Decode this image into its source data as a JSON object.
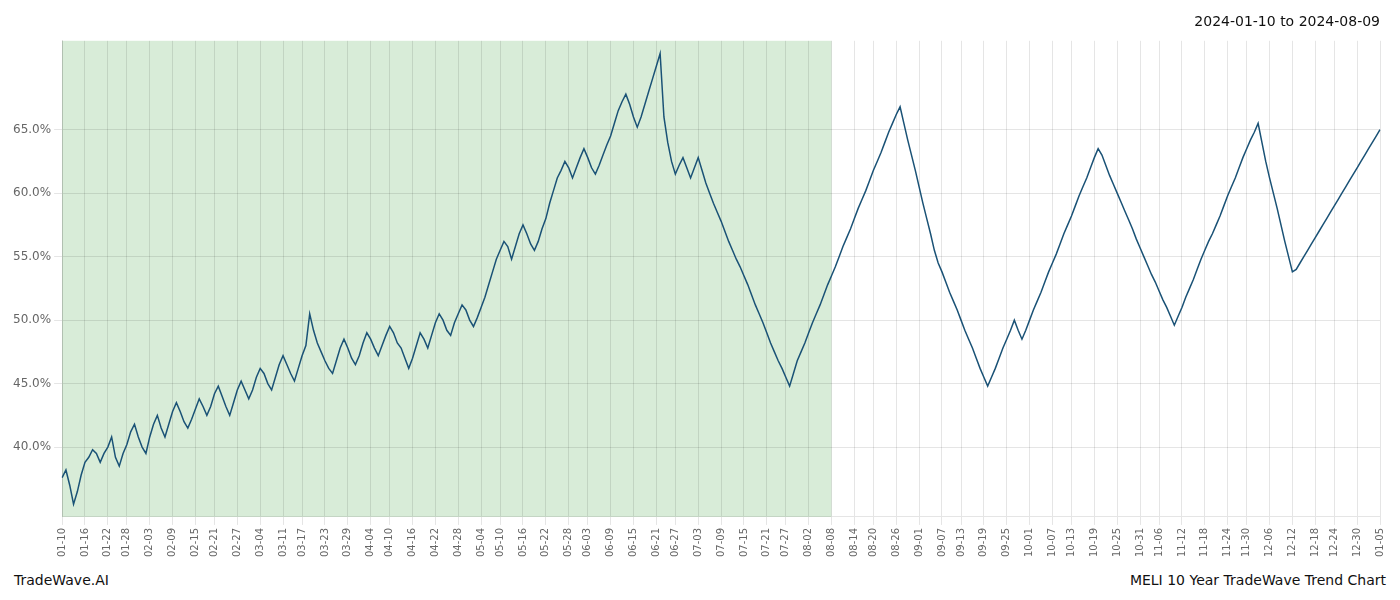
{
  "chart_data": {
    "type": "line",
    "title": "2024-01-10 to 2024-08-09",
    "annotations": [
      "TradeWave.AI",
      "MELI 10 Year TradeWave Trend Chart"
    ],
    "color": "#1a5276",
    "grid": true,
    "highlight": {
      "start": "01-10",
      "end": "08-08",
      "color": "#d8ecd8"
    },
    "ylim": [
      0.345,
      0.72
    ],
    "yticks": [
      {
        "value": 0.4,
        "label": "40.0%"
      },
      {
        "value": 0.45,
        "label": "45.0%"
      },
      {
        "value": 0.5,
        "label": "50.0%"
      },
      {
        "value": 0.55,
        "label": "55.0%"
      },
      {
        "value": 0.6,
        "label": "60.0%"
      },
      {
        "value": 0.65,
        "label": "65.0%"
      }
    ],
    "categories": [
      "01-10",
      null,
      null,
      null,
      null,
      null,
      "01-16",
      null,
      null,
      null,
      null,
      null,
      "01-22",
      null,
      null,
      null,
      null,
      "01-28",
      null,
      null,
      null,
      null,
      null,
      "02-03",
      null,
      null,
      null,
      null,
      null,
      "02-09",
      null,
      null,
      null,
      null,
      null,
      "02-15",
      null,
      null,
      null,
      null,
      "02-21",
      null,
      null,
      null,
      null,
      null,
      "02-27",
      null,
      null,
      null,
      null,
      null,
      "03-04",
      null,
      null,
      null,
      null,
      null,
      "03-11",
      null,
      null,
      null,
      null,
      "03-17",
      null,
      null,
      null,
      null,
      null,
      "03-23",
      null,
      null,
      null,
      null,
      null,
      "03-29",
      null,
      null,
      null,
      null,
      null,
      "04-04",
      null,
      null,
      null,
      null,
      "04-10",
      null,
      null,
      null,
      null,
      null,
      "04-16",
      null,
      null,
      null,
      null,
      null,
      "04-22",
      null,
      null,
      null,
      null,
      null,
      "04-28",
      null,
      null,
      null,
      null,
      null,
      "05-04",
      null,
      null,
      null,
      null,
      "05-10",
      null,
      null,
      null,
      null,
      null,
      "05-16",
      null,
      null,
      null,
      null,
      null,
      "05-22",
      null,
      null,
      null,
      null,
      null,
      "05-28",
      null,
      null,
      null,
      null,
      "06-03",
      null,
      null,
      null,
      null,
      null,
      "06-09",
      null,
      null,
      null,
      null,
      null,
      "06-15",
      null,
      null,
      null,
      null,
      null,
      "06-21",
      null,
      null,
      null,
      null,
      "06-27",
      null,
      null,
      null,
      null,
      null,
      "07-03",
      null,
      null,
      null,
      null,
      null,
      "07-09",
      null,
      null,
      null,
      null,
      null,
      "07-15",
      null,
      null,
      null,
      null,
      null,
      "07-21",
      null,
      null,
      null,
      null,
      "07-27",
      null,
      null,
      null,
      null,
      null,
      "08-02",
      null,
      null,
      null,
      null,
      null,
      "08-08",
      null,
      null,
      null,
      null,
      null,
      "08-14",
      null,
      null,
      null,
      null,
      "08-20",
      null,
      null,
      null,
      null,
      null,
      "08-26",
      null,
      null,
      null,
      null,
      null,
      "09-01",
      null,
      null,
      null,
      null,
      null,
      "09-07",
      null,
      null,
      null,
      null,
      "09-13",
      null,
      null,
      null,
      null,
      null,
      "09-19",
      null,
      null,
      null,
      null,
      null,
      "09-25",
      null,
      null,
      null,
      null,
      null,
      "10-01",
      null,
      null,
      null,
      null,
      null,
      "10-07",
      null,
      null,
      null,
      null,
      "10-13",
      null,
      null,
      null,
      null,
      null,
      "10-19",
      null,
      null,
      null,
      null,
      null,
      "10-25",
      null,
      null,
      null,
      null,
      null,
      "10-31",
      null,
      null,
      null,
      null,
      "11-06",
      null,
      null,
      null,
      null,
      null,
      "11-12",
      null,
      null,
      null,
      null,
      null,
      "11-18",
      null,
      null,
      null,
      null,
      null,
      "11-24",
      null,
      null,
      null,
      null,
      "11-30",
      null,
      null,
      null,
      null,
      null,
      "12-06",
      null,
      null,
      null,
      null,
      null,
      "12-12",
      null,
      null,
      null,
      null,
      null,
      "12-18",
      null,
      null,
      null,
      null,
      "12-24",
      null,
      null,
      null,
      null,
      null,
      "12-30",
      null,
      null,
      null,
      null,
      null,
      "01-05"
    ],
    "values": [
      0.376,
      0.382,
      0.37,
      0.355,
      0.365,
      0.378,
      0.388,
      0.392,
      0.398,
      0.395,
      0.388,
      0.395,
      0.4,
      0.408,
      0.392,
      0.385,
      0.395,
      0.402,
      0.412,
      0.418,
      0.408,
      0.4,
      0.395,
      0.408,
      0.418,
      0.425,
      0.415,
      0.408,
      0.418,
      0.428,
      0.435,
      0.428,
      0.42,
      0.415,
      0.422,
      0.43,
      0.438,
      0.432,
      0.425,
      0.432,
      0.442,
      0.448,
      0.44,
      0.432,
      0.425,
      0.435,
      0.445,
      0.452,
      0.445,
      0.438,
      0.445,
      0.455,
      0.462,
      0.458,
      0.45,
      0.445,
      0.455,
      0.465,
      0.472,
      0.465,
      0.458,
      0.452,
      0.462,
      0.472,
      0.48,
      0.505,
      0.492,
      0.482,
      0.475,
      0.468,
      0.462,
      0.458,
      0.468,
      0.478,
      0.485,
      0.478,
      0.47,
      0.465,
      0.472,
      0.482,
      0.49,
      0.485,
      0.478,
      0.472,
      0.48,
      0.488,
      0.495,
      0.49,
      0.482,
      0.478,
      0.47,
      0.462,
      0.47,
      0.48,
      0.49,
      0.485,
      0.478,
      0.488,
      0.498,
      0.505,
      0.5,
      0.492,
      0.488,
      0.498,
      0.505,
      0.512,
      0.508,
      0.5,
      0.495,
      0.502,
      0.51,
      0.518,
      0.528,
      0.538,
      0.548,
      0.555,
      0.562,
      0.558,
      0.548,
      0.558,
      0.568,
      0.575,
      0.568,
      0.56,
      0.555,
      0.562,
      0.572,
      0.58,
      0.592,
      0.602,
      0.612,
      0.618,
      0.625,
      0.62,
      0.612,
      0.62,
      0.628,
      0.635,
      0.628,
      0.62,
      0.615,
      0.622,
      0.63,
      0.638,
      0.645,
      0.655,
      0.665,
      0.672,
      0.678,
      0.67,
      0.66,
      0.652,
      0.66,
      0.67,
      0.68,
      0.69,
      0.7,
      0.71,
      0.66,
      0.64,
      0.625,
      0.615,
      0.622,
      0.628,
      0.62,
      0.612,
      0.62,
      0.628,
      0.618,
      0.608,
      0.6,
      0.592,
      0.585,
      0.578,
      0.57,
      0.562,
      0.555,
      0.548,
      0.542,
      0.535,
      0.528,
      0.52,
      0.512,
      0.505,
      0.498,
      0.49,
      0.482,
      0.475,
      0.468,
      0.462,
      0.455,
      0.448,
      0.458,
      0.468,
      0.475,
      0.482,
      0.49,
      0.498,
      0.505,
      0.512,
      0.52,
      0.528,
      0.535,
      0.542,
      0.55,
      0.558,
      0.565,
      0.572,
      0.58,
      0.588,
      0.595,
      0.602,
      0.61,
      0.618,
      0.625,
      0.632,
      0.64,
      0.648,
      0.655,
      0.662,
      0.668,
      0.655,
      0.642,
      0.63,
      0.618,
      0.605,
      0.592,
      0.58,
      0.568,
      0.555,
      0.545,
      0.538,
      0.53,
      0.522,
      0.515,
      0.508,
      0.5,
      0.492,
      0.485,
      0.478,
      0.47,
      0.462,
      0.455,
      0.448,
      0.455,
      0.462,
      0.47,
      0.478,
      0.485,
      0.492,
      0.5,
      0.492,
      0.485,
      0.492,
      0.5,
      0.508,
      0.515,
      0.522,
      0.53,
      0.538,
      0.545,
      0.552,
      0.56,
      0.568,
      0.575,
      0.582,
      0.59,
      0.598,
      0.605,
      0.612,
      0.62,
      0.628,
      0.635,
      0.63,
      0.622,
      0.614,
      0.607,
      0.6,
      0.593,
      0.586,
      0.579,
      0.572,
      0.564,
      0.557,
      0.55,
      0.543,
      0.536,
      0.53,
      0.523,
      0.516,
      0.51,
      0.503,
      0.496,
      0.503,
      0.51,
      0.518,
      0.525,
      0.532,
      0.54,
      0.548,
      0.555,
      0.562,
      0.568,
      0.575,
      0.582,
      0.59,
      0.598,
      0.605,
      0.612,
      0.62,
      0.628,
      0.635,
      0.642,
      0.648,
      0.655,
      0.64,
      0.625,
      0.612,
      0.6,
      0.588,
      0.575,
      0.562,
      0.55,
      0.538,
      0.54,
      0.545,
      0.55,
      0.555,
      0.56,
      0.565,
      0.57,
      0.575,
      0.58,
      0.585,
      0.59,
      0.595,
      0.6,
      0.605,
      0.61,
      0.615,
      0.62,
      0.625,
      0.63,
      0.635,
      0.64,
      0.645,
      0.65
    ]
  }
}
